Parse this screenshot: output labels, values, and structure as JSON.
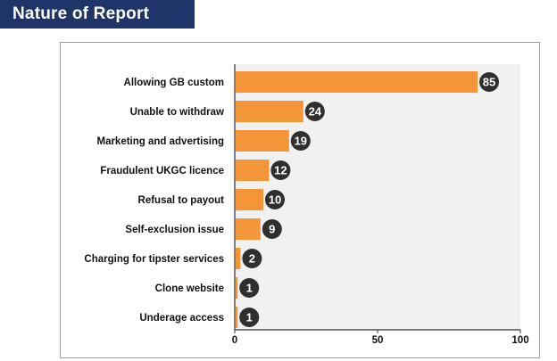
{
  "header": {
    "title": "Nature of Report"
  },
  "colors": {
    "bar": "#f5953a",
    "badge": "#2f2f2f",
    "plot_bg": "#f1f1f1",
    "title_bg": "#1f3468"
  },
  "chart_data": {
    "type": "bar",
    "orientation": "horizontal",
    "title": "",
    "categories": [
      "Allowing GB custom",
      "Unable to withdraw",
      "Marketing and advertising",
      "Fraudulent UKGC licence",
      "Refusal to payout",
      "Self-exclusion issue",
      "Charging for tipster services",
      "Clone website",
      "Underage access"
    ],
    "values": [
      85,
      24,
      19,
      12,
      10,
      9,
      2,
      1,
      1
    ],
    "xlim": [
      0,
      100
    ],
    "xticks": [
      0,
      50,
      100
    ],
    "grid": false
  }
}
